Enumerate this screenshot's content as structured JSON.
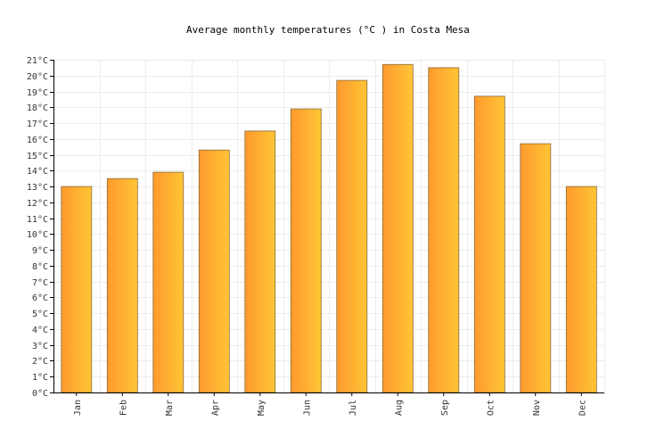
{
  "chart_data": {
    "type": "bar",
    "title": "Average monthly temperatures (°C ) in Costa Mesa",
    "xlabel": "",
    "ylabel": "",
    "categories": [
      "Jan",
      "Feb",
      "Mar",
      "Apr",
      "May",
      "Jun",
      "Jul",
      "Aug",
      "Sep",
      "Oct",
      "Nov",
      "Dec"
    ],
    "values": [
      13.0,
      13.5,
      13.9,
      15.3,
      16.5,
      17.9,
      19.7,
      20.7,
      20.5,
      18.7,
      15.7,
      13.0
    ],
    "ylim": [
      0,
      21
    ],
    "y_ticks": [
      0,
      1,
      2,
      3,
      4,
      5,
      6,
      7,
      8,
      9,
      10,
      11,
      12,
      13,
      14,
      15,
      16,
      17,
      18,
      19,
      20,
      21
    ],
    "y_tick_suffix": "°C",
    "grid": true,
    "legend": "none",
    "colors": {
      "bar_start": "#ff9a2e",
      "bar_end": "#ffc535",
      "bar_stroke": "#8a6a3a",
      "grid": "#ececec",
      "axis": "#000000"
    }
  }
}
